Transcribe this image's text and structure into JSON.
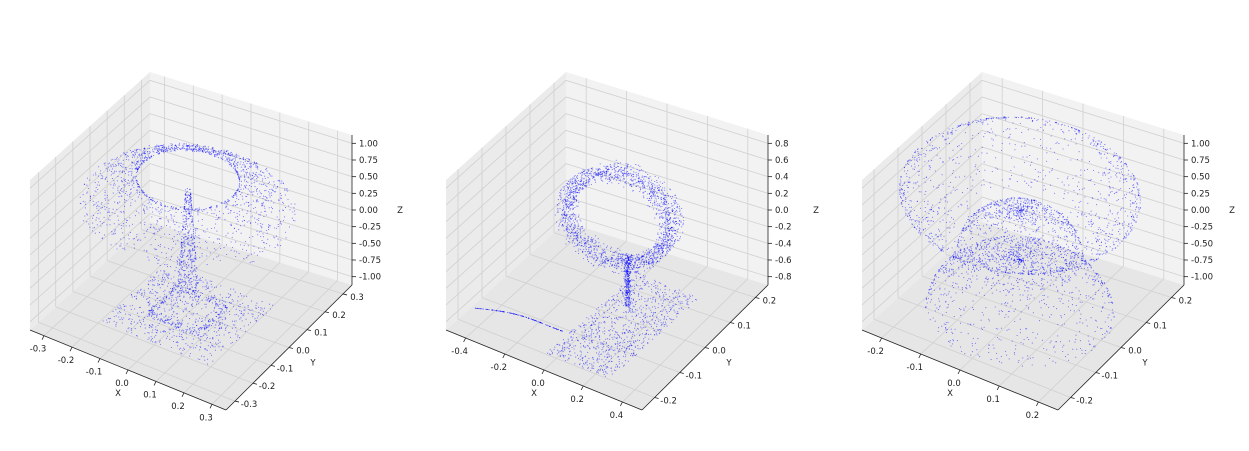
{
  "chart_data": [
    {
      "type": "scatter",
      "subtype": "3d-point-cloud",
      "shape": "lamp",
      "title": "",
      "xlabel": "X",
      "ylabel": "Y",
      "zlabel": "Z",
      "xlim": [
        -0.33,
        0.33
      ],
      "ylim": [
        -0.33,
        0.33
      ],
      "zlim": [
        -1.05,
        1.05
      ],
      "x_ticks": [
        "-0.3",
        "-0.2",
        "-0.1",
        "0.0",
        "0.1",
        "0.2",
        "0.3"
      ],
      "y_ticks": [
        "-0.3",
        "-0.2",
        "-0.1",
        "0.0",
        "0.1",
        "0.2",
        "0.3"
      ],
      "z_ticks": [
        "-1.00",
        "-0.75",
        "-0.50",
        "-0.25",
        "0.00",
        "0.25",
        "0.50",
        "0.75",
        "1.00"
      ],
      "grid": true,
      "point_color": "#0000ff",
      "n_points": 2000
    },
    {
      "type": "scatter",
      "subtype": "3d-point-cloud",
      "shape": "mirror",
      "title": "",
      "xlabel": "X",
      "ylabel": "Y",
      "zlabel": "Z",
      "xlim": [
        -0.55,
        0.55
      ],
      "ylim": [
        -0.3,
        0.3
      ],
      "zlim": [
        -0.9,
        0.9
      ],
      "x_ticks": [
        "-0.4",
        "-0.2",
        "0.0",
        "0.2",
        "0.4"
      ],
      "y_ticks": [
        "-0.2",
        "-0.1",
        "0.0",
        "0.1",
        "0.2"
      ],
      "z_ticks": [
        "-0.8",
        "-0.6",
        "-0.4",
        "-0.2",
        "0.0",
        "0.2",
        "0.4",
        "0.6",
        "0.8"
      ],
      "grid": true,
      "point_color": "#0000ff",
      "n_points": 2000
    },
    {
      "type": "scatter",
      "subtype": "3d-point-cloud",
      "shape": "bowl-and-dome",
      "title": "",
      "xlabel": "X",
      "ylabel": "Y",
      "zlabel": "Z",
      "xlim": [
        -0.27,
        0.27
      ],
      "ylim": [
        -0.27,
        0.27
      ],
      "zlim": [
        -1.05,
        1.05
      ],
      "x_ticks": [
        "-0.2",
        "-0.1",
        "0.0",
        "0.1",
        "0.2"
      ],
      "y_ticks": [
        "-0.2",
        "-0.1",
        "0.0",
        "0.1",
        "0.2"
      ],
      "z_ticks": [
        "-1.00",
        "-0.75",
        "-0.50",
        "-0.25",
        "0.00",
        "0.25",
        "0.50",
        "0.75",
        "1.00"
      ],
      "grid": true,
      "point_color": "#0000ff",
      "n_points": 2000
    }
  ]
}
